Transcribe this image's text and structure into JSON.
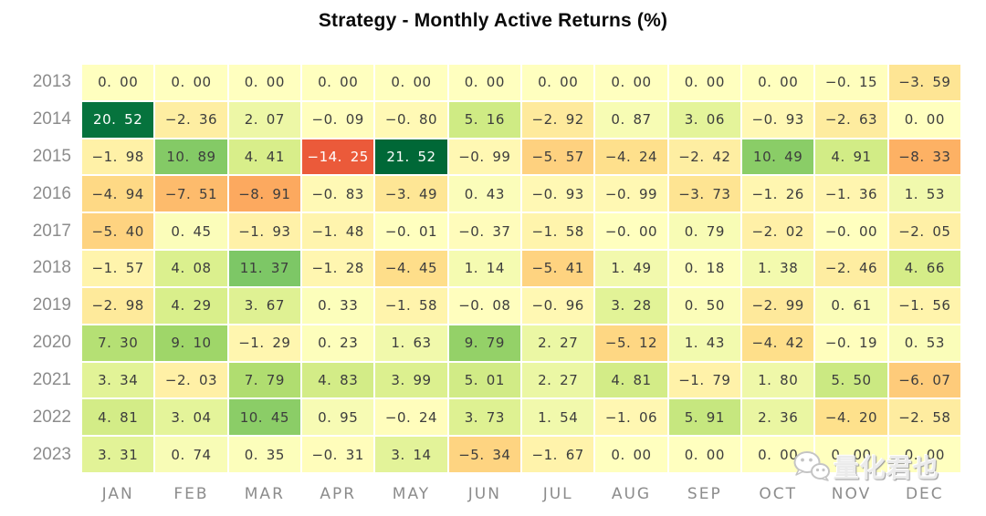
{
  "title": "Strategy - Monthly Active Returns (%)",
  "chart_data": {
    "type": "heatmap",
    "title": "Strategy - Monthly Active Returns (%)",
    "value_unit": "%",
    "x_labels": [
      "JAN",
      "FEB",
      "MAR",
      "APR",
      "MAY",
      "JUN",
      "JUL",
      "AUG",
      "SEP",
      "OCT",
      "NOV",
      "DEC"
    ],
    "y_labels": [
      "2013",
      "2014",
      "2015",
      "2016",
      "2017",
      "2018",
      "2019",
      "2020",
      "2021",
      "2022",
      "2023"
    ],
    "cells": [
      [
        "0.00",
        "0.00",
        "0.00",
        "0.00",
        "0.00",
        "0.00",
        "0.00",
        "0.00",
        "0.00",
        "0.00",
        "-0.15",
        "-3.59"
      ],
      [
        "20.52",
        "-2.36",
        "2.07",
        "-0.09",
        "-0.80",
        "5.16",
        "-2.92",
        "0.87",
        "3.06",
        "-0.93",
        "-2.63",
        "0.00"
      ],
      [
        "-1.98",
        "10.89",
        "4.41",
        "-14.25",
        "21.52",
        "-0.99",
        "-5.57",
        "-4.24",
        "-2.42",
        "10.49",
        "4.91",
        "-8.33"
      ],
      [
        "-4.94",
        "-7.51",
        "-8.91",
        "-0.83",
        "-3.49",
        "0.43",
        "-0.93",
        "-0.99",
        "-3.73",
        "-1.26",
        "-1.36",
        "1.53"
      ],
      [
        "-5.40",
        "0.45",
        "-1.93",
        "-1.48",
        "-0.01",
        "-0.37",
        "-1.58",
        "-0.00",
        "0.79",
        "-2.02",
        "-0.00",
        "-2.05"
      ],
      [
        "-1.57",
        "4.08",
        "11.37",
        "-1.28",
        "-4.45",
        "1.14",
        "-5.41",
        "1.49",
        "0.18",
        "1.38",
        "-2.46",
        "4.66"
      ],
      [
        "-2.98",
        "4.29",
        "3.67",
        "0.33",
        "-1.58",
        "-0.08",
        "-0.96",
        "3.28",
        "0.50",
        "-2.99",
        "0.61",
        "-1.56"
      ],
      [
        "7.30",
        "9.10",
        "-1.29",
        "0.23",
        "1.63",
        "9.79",
        "2.27",
        "-5.12",
        "1.43",
        "-4.42",
        "-0.19",
        "0.53"
      ],
      [
        "3.34",
        "-2.03",
        "7.79",
        "4.83",
        "3.99",
        "5.01",
        "2.27",
        "4.81",
        "-1.79",
        "1.80",
        "5.50",
        "-6.07"
      ],
      [
        "4.81",
        "3.04",
        "10.45",
        "0.95",
        "-0.24",
        "3.73",
        "1.54",
        "-1.06",
        "5.91",
        "2.36",
        "-4.20",
        "-2.58"
      ],
      [
        "3.31",
        "0.74",
        "0.35",
        "-0.31",
        "3.14",
        "-5.34",
        "-1.67",
        "0.00",
        "0.00",
        "0.00",
        "0.00",
        "0.00"
      ]
    ],
    "colormap": {
      "name": "RdYlGn",
      "stops": [
        "#a50026",
        "#d73027",
        "#f46d43",
        "#fdae61",
        "#fee08b",
        "#ffffbf",
        "#d9ef8b",
        "#a6d96a",
        "#66bd63",
        "#1a9850",
        "#006837"
      ],
      "vmin": -21.52,
      "vmax": 21.52,
      "center": 0
    },
    "grid_gap_color": "#ffffff",
    "dark_text_color": "#3d3d3d",
    "light_text_color": "#ffffff",
    "axis_label_color": "#8c8c8c",
    "legend_position": "none"
  },
  "watermark": {
    "icon": "wechat-icon",
    "text": "量化君也"
  }
}
